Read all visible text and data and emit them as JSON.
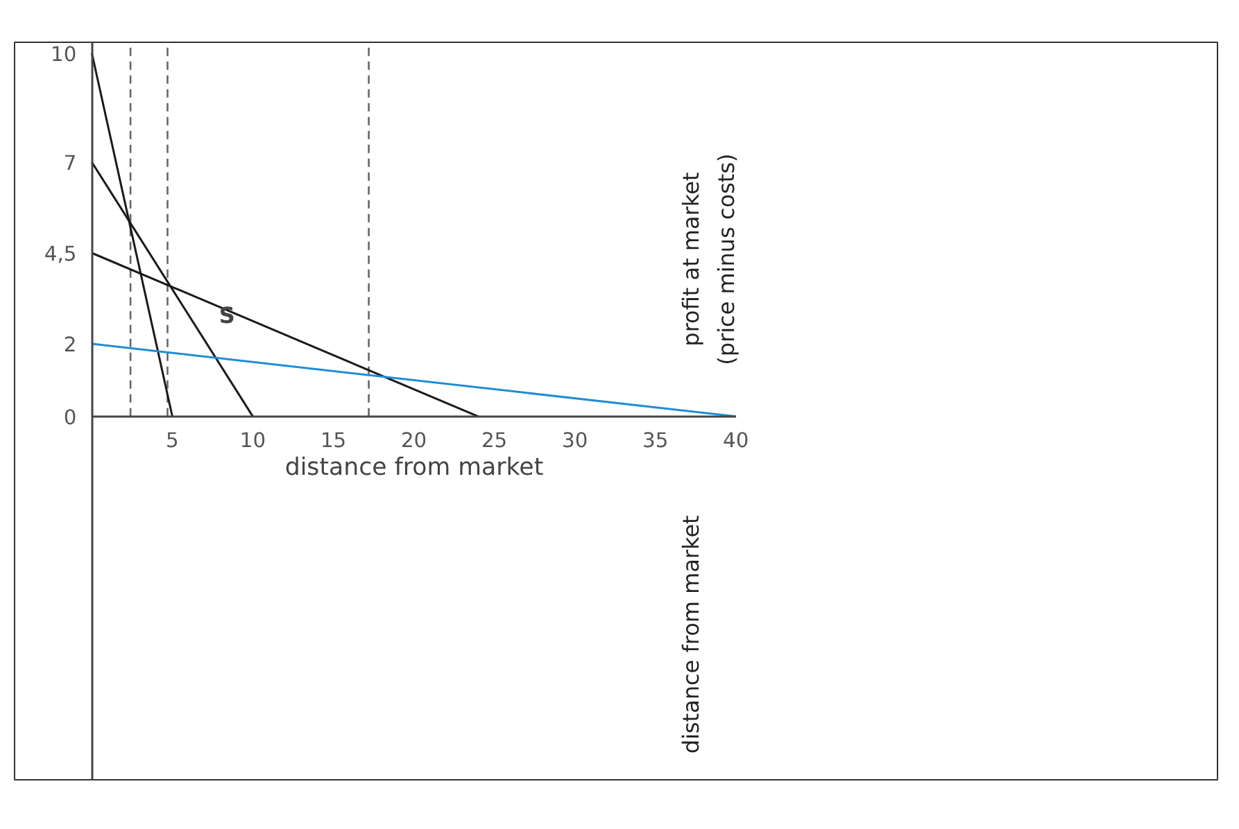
{
  "chart_data": {
    "type": "line",
    "xlabel": "distance from market",
    "ylabel": "profit at market\n(price minus costs)",
    "xlim": [
      0,
      40
    ],
    "xticks": [
      5,
      10,
      15,
      20,
      25,
      30,
      35,
      40
    ],
    "ylim": [
      -10,
      10.3
    ],
    "yticks": [
      0,
      2,
      {
        "value": 4.5,
        "label": "4,5"
      },
      7,
      10
    ],
    "series": [
      {
        "color": "#1a1a1a",
        "x": [
          0,
          5
        ],
        "values": [
          10,
          0
        ]
      },
      {
        "color": "#1a1a1a",
        "x": [
          0,
          10
        ],
        "values": [
          7,
          0
        ]
      },
      {
        "color": "#1a1a1a",
        "x": [
          0,
          24
        ],
        "values": [
          4.5,
          0
        ]
      },
      {
        "color": "#1f8dd6",
        "x": [
          0,
          40
        ],
        "values": [
          2,
          0
        ]
      }
    ],
    "ref_lines": [
      {
        "axis": "x",
        "value": 2.4,
        "color": "#666666",
        "line_style": "dashed"
      },
      {
        "axis": "x",
        "value": 4.7,
        "color": "#666666",
        "line_style": "dashed"
      },
      {
        "axis": "x",
        "value": 17.2,
        "color": "#666666",
        "line_style": "dashed"
      }
    ],
    "annotations": [
      "S",
      "distance from market"
    ],
    "line_style": "solid"
  }
}
